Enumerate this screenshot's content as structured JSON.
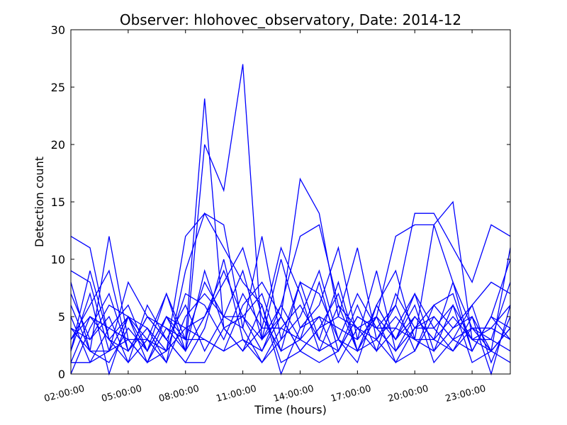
{
  "chart_data": {
    "type": "line",
    "title": "Observer: hlohovec_observatory, Date: 2014-12",
    "xlabel": "Time (hours)",
    "ylabel": "Detection count",
    "xlim": [
      2,
      25
    ],
    "ylim": [
      0,
      30
    ],
    "x_tick_values": [
      2,
      5,
      8,
      11,
      14,
      17,
      20,
      23
    ],
    "x_tick_labels": [
      "02:00:00",
      "05:00:00",
      "08:00:00",
      "11:00:00",
      "14:00:00",
      "17:00:00",
      "20:00:00",
      "23:00:00"
    ],
    "y_ticks": [
      0,
      5,
      10,
      15,
      20,
      25,
      30
    ],
    "grid": false,
    "legend": "none",
    "line_color": "#0000ff",
    "x": [
      2,
      3,
      4,
      5,
      6,
      7,
      8,
      9,
      10,
      11,
      12,
      13,
      14,
      15,
      16,
      17,
      18,
      19,
      20,
      21,
      22,
      23,
      24,
      25
    ],
    "series": [
      {
        "values": [
          12,
          11,
          3,
          2,
          5,
          4,
          3,
          24,
          4,
          5,
          2,
          6,
          12,
          13,
          6,
          4,
          5,
          12,
          13,
          13,
          15,
          3,
          2,
          4
        ]
      },
      {
        "values": [
          9,
          8,
          2,
          5,
          3,
          7,
          2,
          20,
          16,
          27,
          3,
          5,
          17,
          14,
          5,
          11,
          3,
          6,
          14,
          14,
          11,
          8,
          13,
          12
        ]
      },
      {
        "values": [
          4,
          2,
          12,
          3,
          1,
          2,
          12,
          14,
          13,
          4,
          12,
          3,
          8,
          7,
          3,
          2,
          6,
          9,
          3,
          13,
          8,
          4,
          2,
          11
        ]
      },
      {
        "values": [
          2,
          9,
          3,
          5,
          2,
          5,
          3,
          8,
          5,
          9,
          3,
          10,
          4,
          6,
          11,
          3,
          9,
          2,
          4,
          6,
          7,
          2,
          5,
          3
        ]
      },
      {
        "values": [
          5,
          1,
          2,
          8,
          5,
          3,
          1,
          4,
          10,
          3,
          1,
          4,
          6,
          3,
          8,
          2,
          5,
          3,
          7,
          4,
          2,
          4,
          3,
          2
        ]
      },
      {
        "values": [
          3,
          6,
          9,
          2,
          4,
          2,
          4,
          5,
          9,
          5,
          7,
          2,
          3,
          8,
          2,
          5,
          4,
          6,
          2,
          5,
          3,
          6,
          1,
          5
        ]
      },
      {
        "values": [
          7,
          3,
          5,
          1,
          3,
          1,
          9,
          14,
          11,
          8,
          6,
          1,
          2,
          4,
          7,
          2,
          3,
          5,
          3,
          3,
          5,
          3,
          4,
          6
        ]
      },
      {
        "values": [
          1,
          5,
          4,
          3,
          1,
          4,
          2,
          9,
          4,
          2,
          4,
          11,
          7,
          2,
          3,
          7,
          4,
          2,
          5,
          3,
          2,
          5,
          2,
          4
        ]
      },
      {
        "values": [
          6,
          2,
          1,
          4,
          2,
          7,
          3,
          3,
          2,
          6,
          8,
          5,
          2,
          4,
          5,
          4,
          2,
          4,
          3,
          2,
          4,
          6,
          8,
          7
        ]
      },
      {
        "values": [
          0,
          4,
          7,
          2,
          5,
          3,
          6,
          2,
          5,
          4,
          1,
          3,
          5,
          9,
          3,
          1,
          6,
          3,
          6,
          1,
          3,
          2,
          5,
          10
        ]
      },
      {
        "values": [
          8,
          2,
          2,
          3,
          3,
          2,
          7,
          6,
          3,
          7,
          4,
          4,
          3,
          5,
          4,
          3,
          5,
          1,
          4,
          5,
          3,
          4,
          4,
          3
        ]
      },
      {
        "values": [
          2,
          7,
          0,
          5,
          1,
          5,
          2,
          5,
          8,
          11,
          5,
          2,
          8,
          3,
          2,
          6,
          2,
          7,
          4,
          4,
          6,
          3,
          3,
          8
        ]
      },
      {
        "values": [
          4,
          3,
          6,
          5,
          4,
          1,
          5,
          7,
          5,
          5,
          3,
          6,
          3,
          2,
          6,
          2,
          6,
          3,
          5,
          3,
          8,
          2,
          5,
          4
        ]
      },
      {
        "values": [
          3,
          5,
          3,
          1,
          6,
          3,
          1,
          1,
          4,
          2,
          6,
          0,
          4,
          5,
          1,
          4,
          3,
          1,
          2,
          6,
          4,
          5,
          0,
          6
        ]
      },
      {
        "values": [
          1,
          1,
          4,
          6,
          2,
          5,
          4,
          3,
          2,
          3,
          2,
          5,
          2,
          1,
          2,
          5,
          4,
          4,
          7,
          2,
          6,
          1,
          2,
          1
        ]
      }
    ]
  }
}
